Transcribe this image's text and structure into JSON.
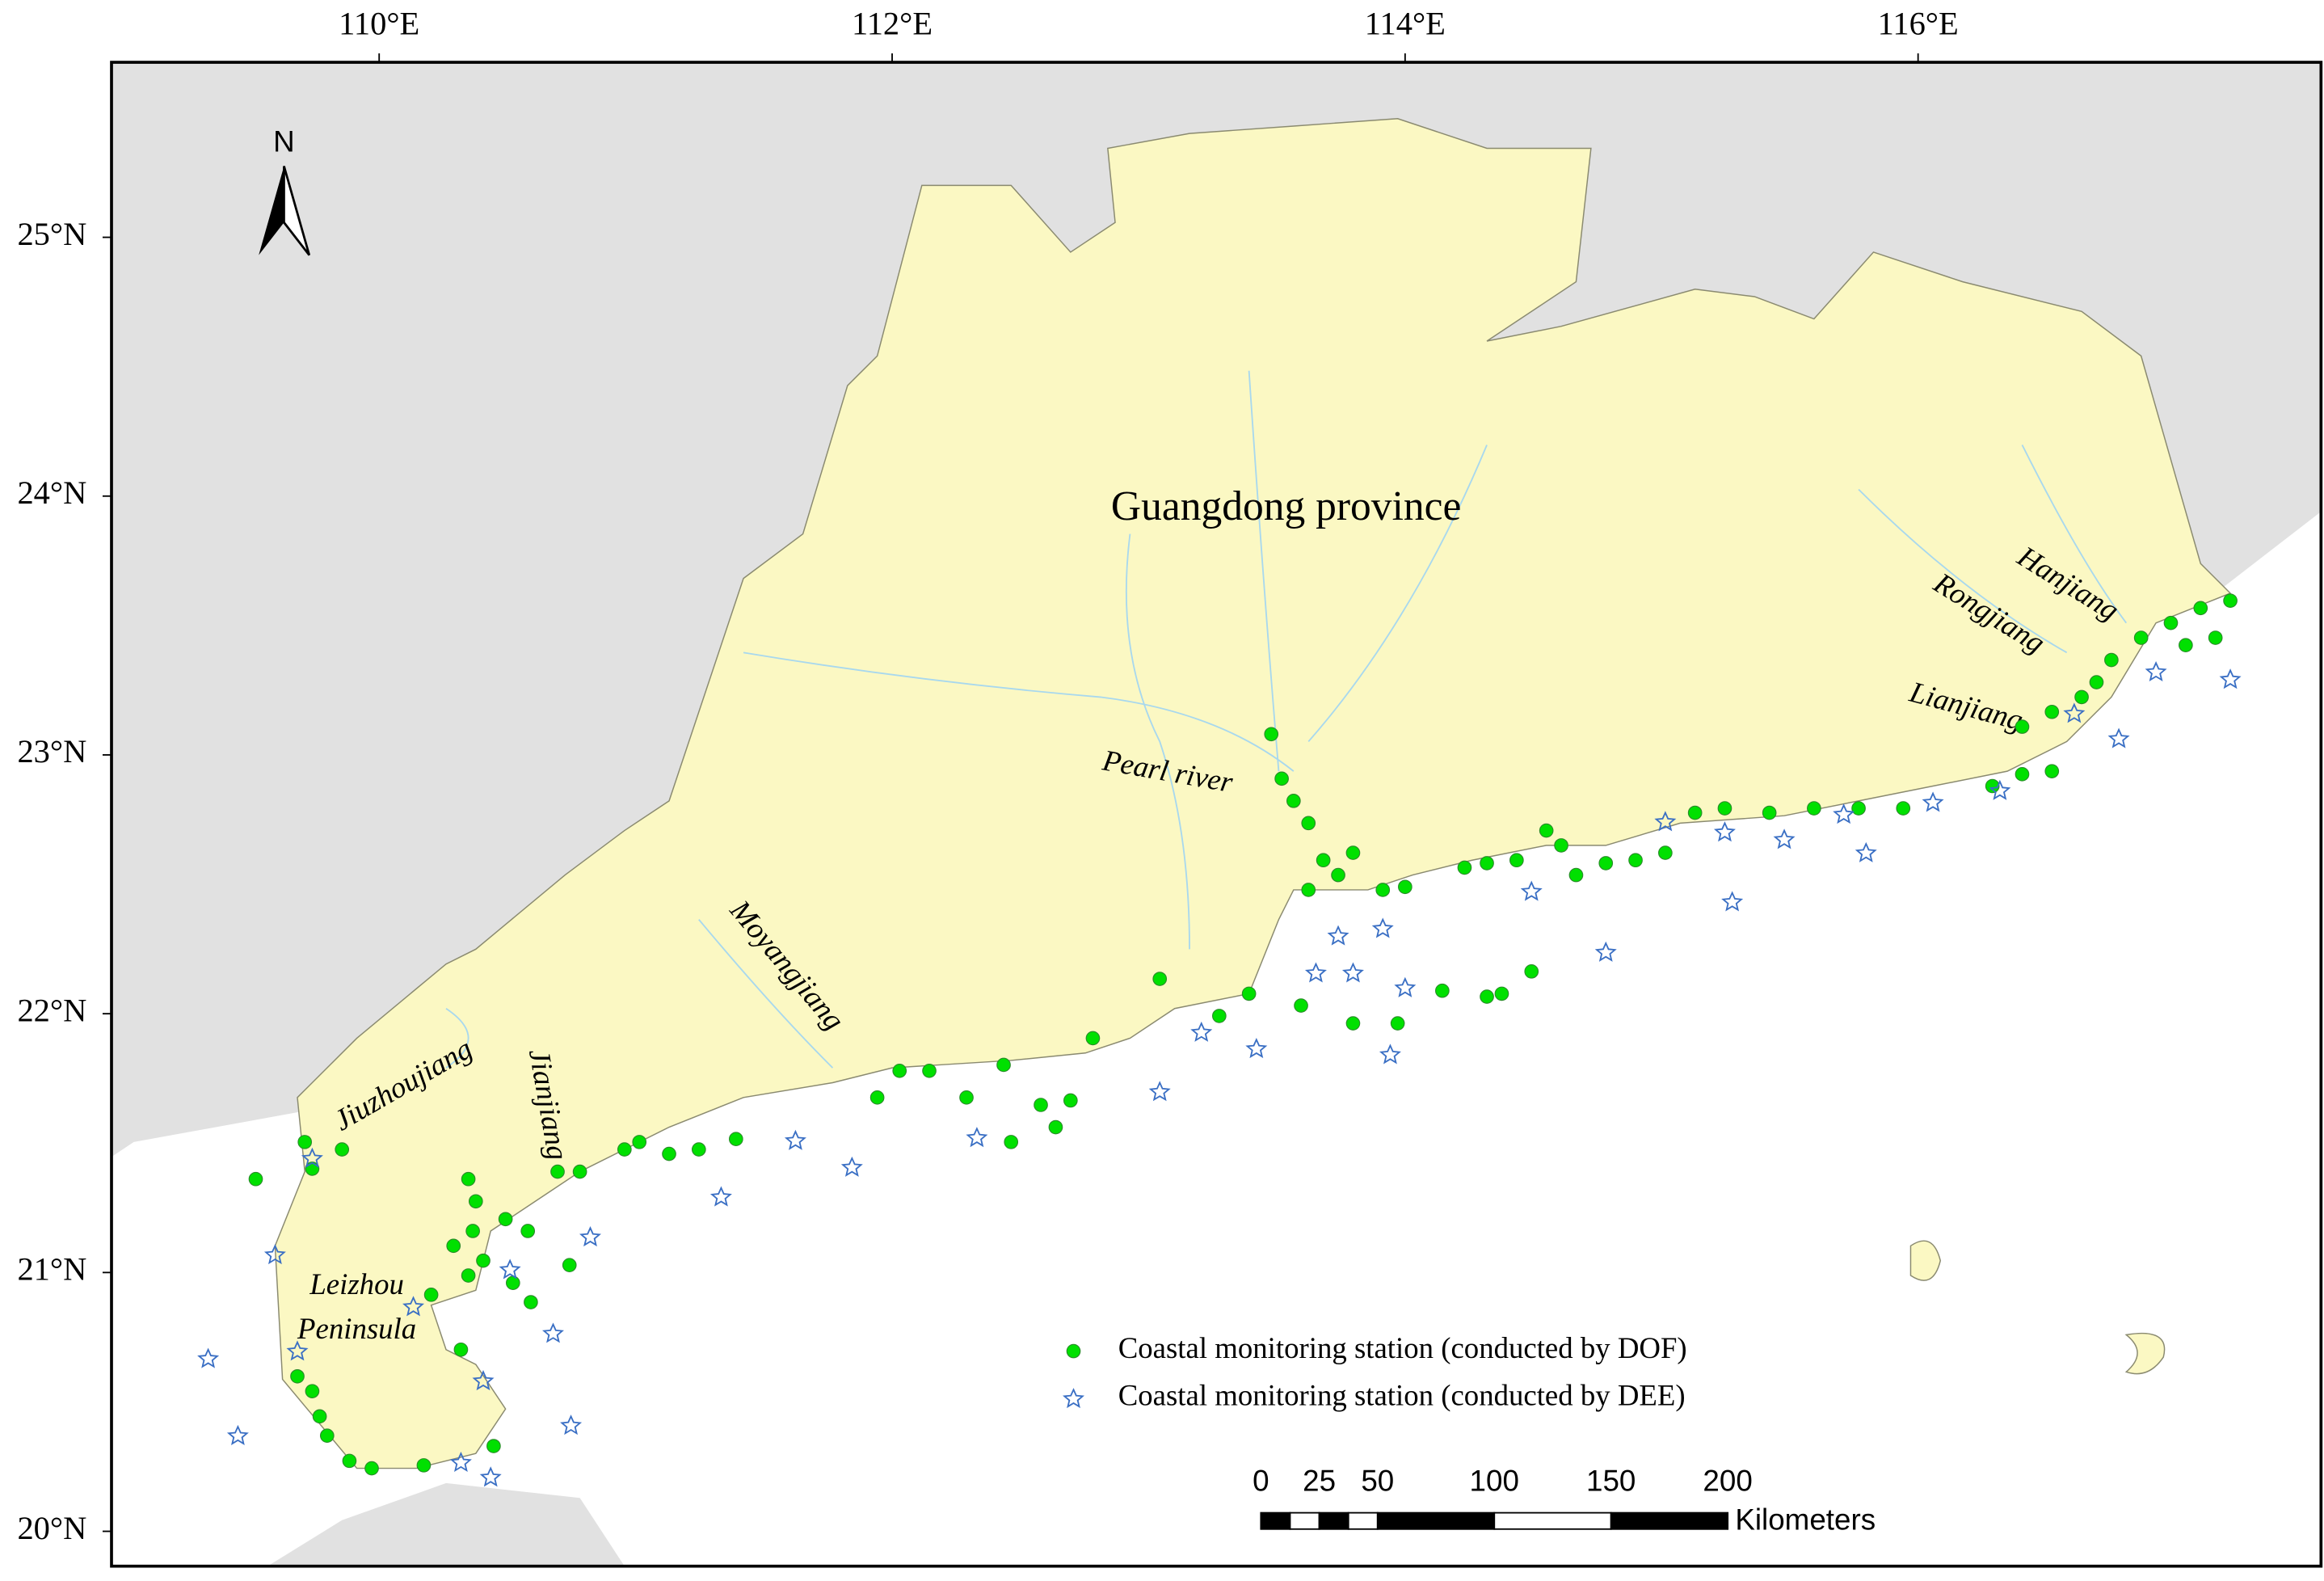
{
  "map": {
    "lon_ticks": [
      {
        "value": 110,
        "label": "110°E"
      },
      {
        "value": 112,
        "label": "112°E"
      },
      {
        "value": 114,
        "label": "114°E"
      },
      {
        "value": 116,
        "label": "116°E"
      }
    ],
    "lat_ticks": [
      {
        "value": 25,
        "label": "25°N"
      },
      {
        "value": 24,
        "label": "24°N"
      },
      {
        "value": 23,
        "label": "23°N"
      },
      {
        "value": 22,
        "label": "22°N"
      },
      {
        "value": 21,
        "label": "21°N"
      },
      {
        "value": 20,
        "label": "20°N"
      }
    ],
    "north": "N",
    "region_label": "Guangdong province",
    "river_labels": [
      "Hanjiang",
      "Rongjiang",
      "Lianjiang",
      "Pearl river",
      "Moyangjiang",
      "Jiuzhoujiang",
      "Jianjiang"
    ],
    "peninsula_label": [
      "Leizhou",
      "Peninsula"
    ],
    "legend": [
      "Coastal monitoring station (conducted by DOF)",
      "Coastal monitoring station (conducted by DEE)"
    ],
    "scale_bar": {
      "ticks": [
        0,
        25,
        50,
        100,
        150,
        200
      ],
      "unit": "Kilometers"
    }
  }
}
